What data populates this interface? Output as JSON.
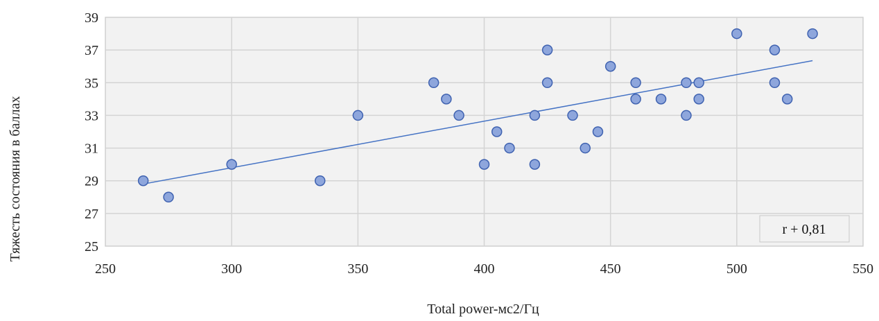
{
  "chart_data": {
    "type": "scatter",
    "xlabel": "Total power-мс2/Гц",
    "ylabel": "Тяжесть состояния в баллах",
    "xlim": [
      250,
      550
    ],
    "ylim": [
      25,
      39
    ],
    "xticks": [
      250,
      300,
      350,
      400,
      450,
      500,
      550
    ],
    "yticks": [
      25,
      27,
      29,
      31,
      33,
      35,
      37,
      39
    ],
    "grid": true,
    "legend": "none",
    "points": [
      {
        "x": 265,
        "y": 29
      },
      {
        "x": 275,
        "y": 28
      },
      {
        "x": 300,
        "y": 30
      },
      {
        "x": 335,
        "y": 29
      },
      {
        "x": 350,
        "y": 33
      },
      {
        "x": 380,
        "y": 35
      },
      {
        "x": 385,
        "y": 34
      },
      {
        "x": 390,
        "y": 33
      },
      {
        "x": 400,
        "y": 30
      },
      {
        "x": 405,
        "y": 32
      },
      {
        "x": 410,
        "y": 31
      },
      {
        "x": 420,
        "y": 33
      },
      {
        "x": 420,
        "y": 30
      },
      {
        "x": 425,
        "y": 37
      },
      {
        "x": 425,
        "y": 35
      },
      {
        "x": 435,
        "y": 33
      },
      {
        "x": 440,
        "y": 31
      },
      {
        "x": 445,
        "y": 32
      },
      {
        "x": 450,
        "y": 36
      },
      {
        "x": 460,
        "y": 35
      },
      {
        "x": 460,
        "y": 34
      },
      {
        "x": 470,
        "y": 34
      },
      {
        "x": 480,
        "y": 35
      },
      {
        "x": 480,
        "y": 33
      },
      {
        "x": 485,
        "y": 35
      },
      {
        "x": 485,
        "y": 34
      },
      {
        "x": 500,
        "y": 38
      },
      {
        "x": 515,
        "y": 37
      },
      {
        "x": 515,
        "y": 35
      },
      {
        "x": 520,
        "y": 34
      },
      {
        "x": 530,
        "y": 38
      }
    ],
    "trendline": {
      "type": "linear",
      "x": [
        265,
        530
      ],
      "y": [
        28.8,
        36.35
      ]
    },
    "annotation": "r + 0,81",
    "colors": {
      "point_fill": "#8ea6dc",
      "point_stroke": "#3f62b0",
      "trendline": "#4472c4",
      "plot_background": "#f2f2f2"
    }
  }
}
